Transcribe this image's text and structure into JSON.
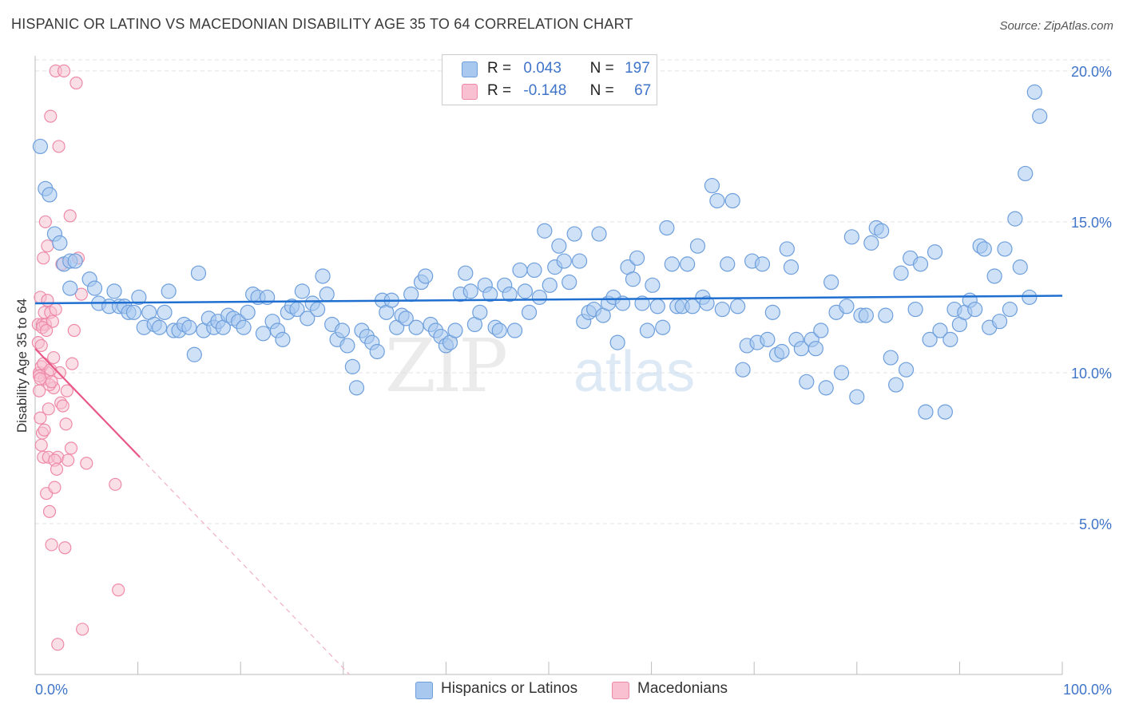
{
  "title": "HISPANIC OR LATINO VS MACEDONIAN DISABILITY AGE 35 TO 64 CORRELATION CHART",
  "source": "Source: ZipAtlas.com",
  "watermark": {
    "zip": "ZIP",
    "atlas": "atlas"
  },
  "colors": {
    "blue_fill": "#a8c8f0",
    "blue_stroke": "#6e9fdc",
    "blue_line": "#1f6fd0",
    "pink_fill": "#f8c0d0",
    "pink_stroke": "#ee8aa8",
    "pink_line": "#e8588a",
    "tick_text": "#3f74c8",
    "grid": "#e3e3e3"
  },
  "stats": [
    {
      "r_label": "R =",
      "r_value": "0.043",
      "n_label": "N =",
      "n_value": "197",
      "color": "#a8c8f0"
    },
    {
      "r_label": "R =",
      "r_value": "-0.148",
      "n_label": "N =",
      "n_value": "67",
      "color": "#f8c0d0"
    }
  ],
  "legend": [
    {
      "label": "Hispanics or Latinos",
      "color": "#a8c8f0"
    },
    {
      "label": "Macedonians",
      "color": "#f8c0d0"
    }
  ],
  "chart_data": {
    "type": "scatter",
    "title": "HISPANIC OR LATINO VS MACEDONIAN DISABILITY AGE 35 TO 64 CORRELATION CHART",
    "xlabel": "",
    "ylabel": "Disability Age 35 to 64",
    "xlim": [
      0,
      100
    ],
    "ylim": [
      0,
      20.5
    ],
    "x_tick_labels": [
      "0.0%",
      "100.0%"
    ],
    "y_ticks": [
      5,
      10,
      15,
      20
    ],
    "y_tick_labels": [
      "5.0%",
      "10.0%",
      "15.0%",
      "20.0%"
    ],
    "grid": true,
    "legend_position": "bottom",
    "series": [
      {
        "name": "Hispanics or Latinos",
        "r": 0.043,
        "n": 197,
        "trend": {
          "x": [
            0,
            100
          ],
          "y": [
            12.3,
            12.55
          ]
        },
        "points": [
          [
            0.5,
            17.5
          ],
          [
            1,
            16.1
          ],
          [
            1.4,
            15.9
          ],
          [
            1.9,
            14.6
          ],
          [
            2.4,
            14.3
          ],
          [
            2.8,
            13.6
          ],
          [
            3.4,
            13.7
          ],
          [
            3.9,
            13.7
          ],
          [
            3.4,
            12.8
          ],
          [
            5.3,
            13.1
          ],
          [
            5.8,
            12.8
          ],
          [
            6.2,
            12.3
          ],
          [
            7.2,
            12.2
          ],
          [
            7.7,
            12.7
          ],
          [
            8.2,
            12.2
          ],
          [
            8.7,
            12.2
          ],
          [
            9.1,
            12.0
          ],
          [
            9.6,
            12.0
          ],
          [
            10.1,
            12.5
          ],
          [
            10.6,
            11.5
          ],
          [
            11.1,
            12.0
          ],
          [
            11.6,
            11.6
          ],
          [
            12.1,
            11.5
          ],
          [
            12.6,
            12.0
          ],
          [
            13.0,
            12.7
          ],
          [
            13.5,
            11.4
          ],
          [
            14.0,
            11.4
          ],
          [
            14.5,
            11.6
          ],
          [
            15.0,
            11.5
          ],
          [
            15.5,
            10.6
          ],
          [
            15.9,
            13.3
          ],
          [
            16.4,
            11.4
          ],
          [
            16.9,
            11.8
          ],
          [
            17.4,
            11.5
          ],
          [
            17.8,
            11.7
          ],
          [
            18.3,
            11.5
          ],
          [
            18.8,
            11.9
          ],
          [
            19.3,
            11.8
          ],
          [
            19.8,
            11.7
          ],
          [
            20.3,
            11.5
          ],
          [
            20.7,
            12.0
          ],
          [
            21.2,
            12.6
          ],
          [
            21.7,
            12.5
          ],
          [
            22.2,
            11.3
          ],
          [
            22.6,
            12.5
          ],
          [
            23.1,
            11.7
          ],
          [
            23.6,
            11.4
          ],
          [
            24.1,
            11.1
          ],
          [
            24.6,
            12.0
          ],
          [
            25.0,
            12.2
          ],
          [
            25.5,
            12.1
          ],
          [
            26.0,
            12.7
          ],
          [
            26.5,
            11.8
          ],
          [
            27.0,
            12.3
          ],
          [
            27.5,
            12.1
          ],
          [
            28.0,
            13.2
          ],
          [
            28.4,
            12.6
          ],
          [
            28.9,
            11.6
          ],
          [
            29.4,
            11.1
          ],
          [
            29.9,
            11.4
          ],
          [
            30.4,
            10.9
          ],
          [
            30.9,
            10.2
          ],
          [
            31.3,
            9.5
          ],
          [
            31.8,
            11.4
          ],
          [
            32.3,
            11.2
          ],
          [
            32.8,
            11.0
          ],
          [
            33.3,
            10.7
          ],
          [
            33.8,
            12.4
          ],
          [
            34.2,
            12.0
          ],
          [
            34.7,
            12.4
          ],
          [
            35.2,
            11.5
          ],
          [
            35.7,
            11.9
          ],
          [
            36.1,
            11.8
          ],
          [
            36.6,
            12.6
          ],
          [
            37.1,
            11.5
          ],
          [
            37.6,
            13.0
          ],
          [
            38.0,
            13.2
          ],
          [
            38.5,
            11.6
          ],
          [
            39.0,
            11.4
          ],
          [
            39.5,
            11.2
          ],
          [
            40.0,
            10.9
          ],
          [
            40.4,
            11.0
          ],
          [
            40.9,
            11.4
          ],
          [
            41.4,
            12.6
          ],
          [
            41.9,
            13.3
          ],
          [
            42.4,
            12.7
          ],
          [
            42.8,
            11.6
          ],
          [
            43.3,
            12.0
          ],
          [
            43.8,
            12.9
          ],
          [
            44.3,
            12.6
          ],
          [
            44.8,
            11.5
          ],
          [
            45.2,
            11.4
          ],
          [
            45.7,
            12.9
          ],
          [
            46.2,
            12.6
          ],
          [
            46.7,
            11.4
          ],
          [
            47.2,
            13.4
          ],
          [
            47.7,
            12.7
          ],
          [
            48.1,
            12.0
          ],
          [
            48.6,
            13.4
          ],
          [
            49.1,
            12.5
          ],
          [
            49.6,
            14.7
          ],
          [
            50.1,
            12.9
          ],
          [
            50.6,
            13.5
          ],
          [
            51.0,
            14.2
          ],
          [
            51.5,
            13.7
          ],
          [
            52.0,
            13.0
          ],
          [
            52.5,
            14.6
          ],
          [
            53.0,
            13.7
          ],
          [
            53.4,
            11.7
          ],
          [
            53.9,
            12.0
          ],
          [
            54.4,
            12.1
          ],
          [
            54.9,
            14.6
          ],
          [
            55.3,
            11.9
          ],
          [
            55.8,
            12.3
          ],
          [
            56.3,
            12.5
          ],
          [
            56.7,
            11.0
          ],
          [
            57.2,
            12.3
          ],
          [
            57.7,
            13.5
          ],
          [
            58.2,
            13.1
          ],
          [
            58.6,
            13.8
          ],
          [
            59.1,
            12.3
          ],
          [
            59.6,
            11.4
          ],
          [
            60.1,
            12.9
          ],
          [
            60.6,
            12.2
          ],
          [
            61.1,
            11.5
          ],
          [
            61.5,
            14.8
          ],
          [
            62.0,
            13.6
          ],
          [
            62.5,
            12.2
          ],
          [
            63.0,
            12.2
          ],
          [
            63.5,
            13.6
          ],
          [
            64.0,
            12.2
          ],
          [
            64.5,
            14.2
          ],
          [
            65.0,
            12.5
          ],
          [
            65.4,
            12.3
          ],
          [
            65.9,
            16.2
          ],
          [
            66.4,
            15.7
          ],
          [
            66.9,
            12.1
          ],
          [
            67.4,
            13.6
          ],
          [
            67.9,
            15.7
          ],
          [
            68.4,
            12.2
          ],
          [
            68.9,
            10.1
          ],
          [
            69.3,
            10.9
          ],
          [
            69.8,
            13.7
          ],
          [
            70.3,
            11.0
          ],
          [
            70.8,
            13.6
          ],
          [
            71.3,
            11.1
          ],
          [
            71.8,
            12.0
          ],
          [
            72.2,
            10.6
          ],
          [
            72.7,
            10.7
          ],
          [
            73.2,
            14.1
          ],
          [
            73.6,
            13.5
          ],
          [
            74.1,
            11.1
          ],
          [
            74.6,
            10.8
          ],
          [
            75.1,
            9.7
          ],
          [
            75.6,
            11.1
          ],
          [
            76.0,
            10.8
          ],
          [
            76.5,
            11.4
          ],
          [
            77.0,
            9.5
          ],
          [
            77.5,
            13.0
          ],
          [
            78.0,
            12.0
          ],
          [
            78.5,
            10.0
          ],
          [
            79.0,
            12.2
          ],
          [
            79.5,
            14.5
          ],
          [
            80.0,
            9.2
          ],
          [
            80.4,
            11.9
          ],
          [
            80.9,
            11.9
          ],
          [
            81.4,
            14.3
          ],
          [
            81.9,
            14.8
          ],
          [
            82.4,
            14.7
          ],
          [
            82.8,
            11.9
          ],
          [
            83.3,
            10.5
          ],
          [
            83.8,
            9.6
          ],
          [
            84.3,
            13.3
          ],
          [
            84.8,
            10.1
          ],
          [
            85.2,
            13.8
          ],
          [
            85.7,
            12.1
          ],
          [
            86.2,
            13.6
          ],
          [
            86.7,
            8.7
          ],
          [
            87.1,
            11.1
          ],
          [
            87.6,
            14.0
          ],
          [
            88.1,
            11.4
          ],
          [
            88.6,
            8.7
          ],
          [
            89.1,
            11.1
          ],
          [
            89.5,
            12.1
          ],
          [
            90.0,
            11.6
          ],
          [
            90.5,
            12.0
          ],
          [
            91.0,
            12.4
          ],
          [
            91.5,
            12.1
          ],
          [
            92.0,
            14.2
          ],
          [
            92.4,
            14.1
          ],
          [
            92.9,
            11.5
          ],
          [
            93.4,
            13.2
          ],
          [
            93.9,
            11.7
          ],
          [
            94.4,
            14.1
          ],
          [
            94.9,
            12.1
          ],
          [
            95.4,
            15.1
          ],
          [
            95.9,
            13.5
          ],
          [
            96.4,
            16.6
          ],
          [
            96.8,
            12.5
          ],
          [
            97.3,
            19.3
          ],
          [
            97.8,
            18.5
          ]
        ]
      },
      {
        "name": "Macedonians",
        "r": -0.148,
        "n": 67,
        "trend": {
          "x": [
            0,
            10.2
          ],
          "y": [
            10.8,
            7.2
          ]
        },
        "points": [
          [
            0.3,
            11.6
          ],
          [
            0.3,
            11.0
          ],
          [
            0.4,
            10.0
          ],
          [
            0.4,
            9.4
          ],
          [
            0.5,
            12.5
          ],
          [
            0.5,
            8.5
          ],
          [
            0.6,
            10.2
          ],
          [
            0.6,
            7.6
          ],
          [
            0.7,
            11.6
          ],
          [
            0.7,
            8.0
          ],
          [
            0.8,
            7.2
          ],
          [
            0.8,
            13.8
          ],
          [
            0.9,
            12.0
          ],
          [
            0.9,
            9.8
          ],
          [
            1.0,
            15.0
          ],
          [
            1.0,
            11.6
          ],
          [
            1.1,
            6.0
          ],
          [
            1.2,
            14.2
          ],
          [
            1.2,
            10.0
          ],
          [
            1.3,
            8.8
          ],
          [
            1.3,
            7.2
          ],
          [
            1.4,
            5.4
          ],
          [
            1.5,
            18.5
          ],
          [
            1.5,
            12.0
          ],
          [
            1.6,
            4.3
          ],
          [
            1.7,
            11.7
          ],
          [
            1.8,
            10.5
          ],
          [
            1.8,
            9.5
          ],
          [
            1.9,
            6.2
          ],
          [
            2.0,
            20.0
          ],
          [
            2.0,
            12.1
          ],
          [
            2.2,
            1.0
          ],
          [
            2.2,
            7.2
          ],
          [
            2.3,
            17.5
          ],
          [
            2.4,
            10.0
          ],
          [
            2.5,
            9.0
          ],
          [
            2.6,
            13.6
          ],
          [
            2.8,
            20.0
          ],
          [
            2.9,
            4.2
          ],
          [
            3.0,
            8.3
          ],
          [
            3.2,
            7.1
          ],
          [
            3.4,
            15.2
          ],
          [
            3.5,
            7.5
          ],
          [
            3.6,
            10.3
          ],
          [
            3.8,
            11.4
          ],
          [
            4.0,
            19.6
          ],
          [
            4.2,
            13.8
          ],
          [
            4.5,
            12.6
          ],
          [
            4.6,
            1.5
          ],
          [
            5.0,
            7.0
          ],
          [
            7.8,
            6.3
          ],
          [
            8.1,
            2.8
          ],
          [
            0.4,
            9.9
          ],
          [
            0.6,
            10.9
          ],
          [
            0.7,
            11.5
          ],
          [
            0.9,
            8.1
          ],
          [
            1.1,
            11.4
          ],
          [
            1.4,
            9.6
          ],
          [
            1.6,
            9.7
          ],
          [
            1.9,
            7.1
          ],
          [
            2.1,
            6.8
          ],
          [
            2.7,
            8.9
          ],
          [
            3.1,
            9.4
          ],
          [
            1.2,
            12.4
          ],
          [
            0.8,
            10.3
          ],
          [
            1.5,
            10.1
          ],
          [
            0.5,
            9.8
          ]
        ]
      }
    ]
  }
}
